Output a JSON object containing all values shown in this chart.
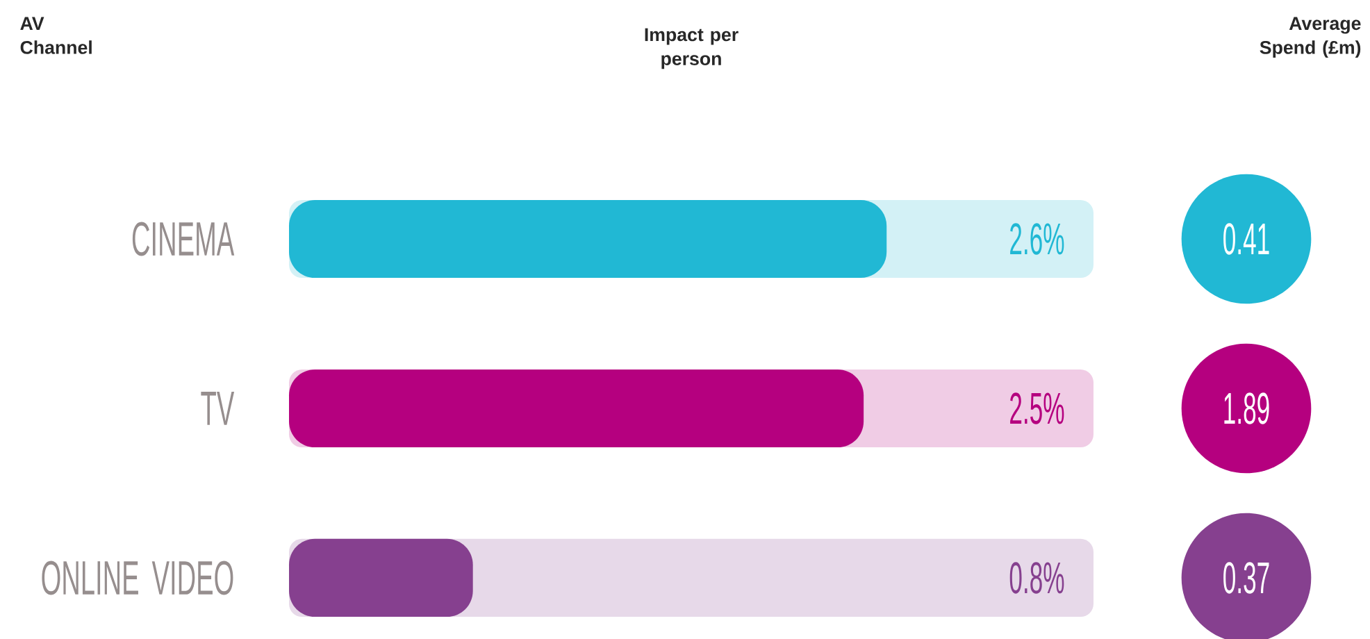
{
  "chart_data": [
    {
      "type": "bar",
      "orientation": "horizontal",
      "title": "Impact per person",
      "ylabel": "AV Channel",
      "categories": [
        "CINEMA",
        "TV",
        "ONLINE VIDEO"
      ],
      "values": [
        2.6,
        2.5,
        0.8
      ],
      "value_labels": [
        "2.6%",
        "2.5%",
        "0.8%"
      ],
      "colors": [
        "#21b8d4",
        "#b5007f",
        "#86408f"
      ],
      "xlim": [
        0,
        3.5
      ],
      "tick_labels": "y"
    },
    {
      "type": "other",
      "title": "Average Spend (£m)",
      "values": [
        0.41,
        1.89,
        0.37
      ],
      "value_labels": [
        "0.41",
        "1.89",
        "0.37"
      ],
      "colors": [
        "#21b8d4",
        "#b5007f",
        "#86408f"
      ]
    }
  ]
}
